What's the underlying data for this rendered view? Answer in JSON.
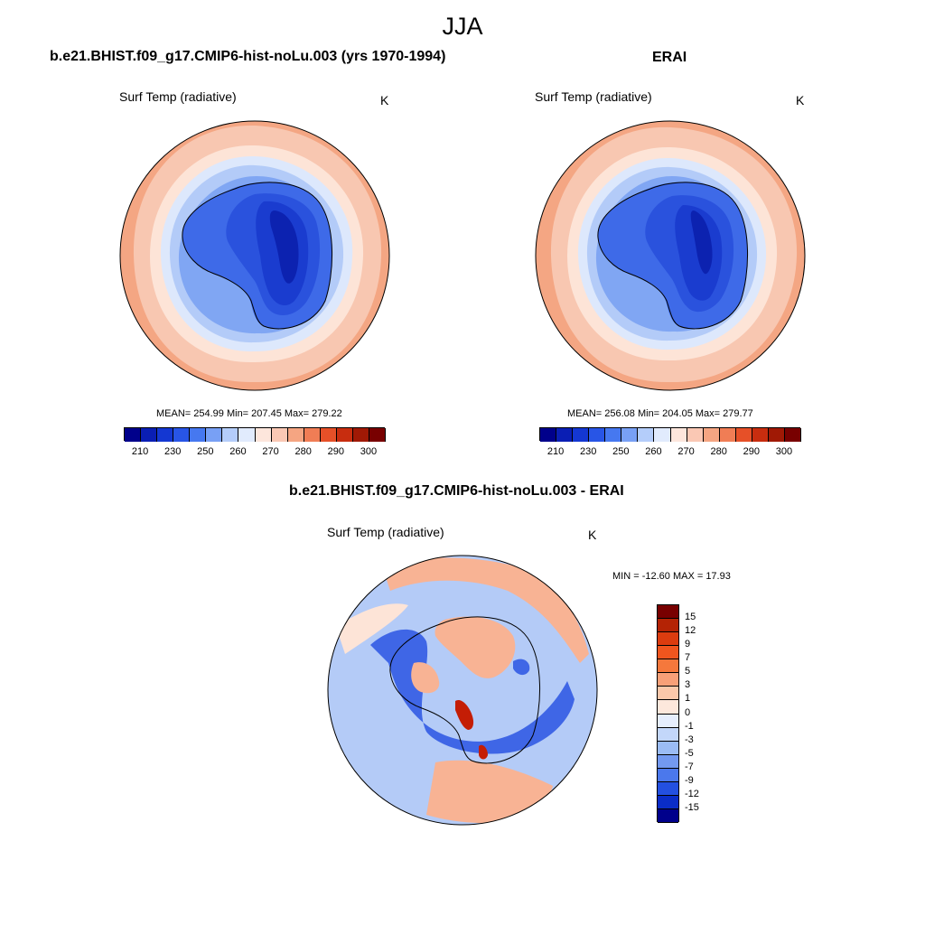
{
  "main_title": "JJA",
  "panels": {
    "model": {
      "title": "b.e21.BHIST.f09_g17.CMIP6-hist-noLu.003 (yrs 1970-1994)",
      "variable": "Surf Temp (radiative)",
      "units": "K",
      "stats": "MEAN= 254.99  Min= 207.45  Max= 279.22"
    },
    "obs": {
      "title": "ERAI",
      "variable": "Surf Temp (radiative)",
      "units": "K",
      "stats": "MEAN= 256.08  Min= 204.05  Max= 279.77"
    },
    "diff": {
      "title": "b.e21.BHIST.f09_g17.CMIP6-hist-noLu.003 - ERAI",
      "variable": "Surf Temp (radiative)",
      "units": "K",
      "stats": "MIN = -12.60 MAX =  17.93"
    }
  },
  "colorbars": {
    "absolute": {
      "tick_labels": [
        "210",
        "230",
        "250",
        "260",
        "270",
        "280",
        "290",
        "300"
      ],
      "colors": [
        "#00008b",
        "#0a1eb4",
        "#1437d2",
        "#2855e6",
        "#4678f0",
        "#78a0f5",
        "#b4cdfa",
        "#e1ebfd",
        "#fde6dc",
        "#fac8b4",
        "#f5a582",
        "#f07d55",
        "#e65028",
        "#c82d0f",
        "#a01905",
        "#780000"
      ]
    },
    "difference": {
      "tick_labels": [
        "15",
        "12",
        "9",
        "7",
        "5",
        "3",
        "1",
        "0",
        "-1",
        "-3",
        "-5",
        "-7",
        "-9",
        "-12",
        "-15"
      ],
      "colors": [
        "#780000",
        "#b42305",
        "#dc3c0f",
        "#f0551e",
        "#f5783c",
        "#f8a078",
        "#fbc8aa",
        "#fde8dc",
        "#e6eefd",
        "#c3d7fa",
        "#9bbcf5",
        "#7399f0",
        "#4b78ec",
        "#2350e1",
        "#0a2dc8",
        "#00008b"
      ]
    }
  },
  "map_colors": {
    "ocean_far": "#f4a683",
    "ocean_mid": "#f8c7b1",
    "ocean_near": "#fde4d7",
    "ice_edge": "#dde8fc",
    "ice_1": "#b3cbf8",
    "ice_2": "#80a6f3",
    "ice_3": "#5a85ee",
    "land_1": "#3e6ae8",
    "land_2": "#2a52dd",
    "land_3": "#1a3ccf",
    "land_core": "#0c22b0",
    "diff_bg": "#b4cbf7",
    "diff_warm": "#f8b394",
    "diff_cold": "#3f66e6",
    "diff_hot": "#c41d05"
  }
}
